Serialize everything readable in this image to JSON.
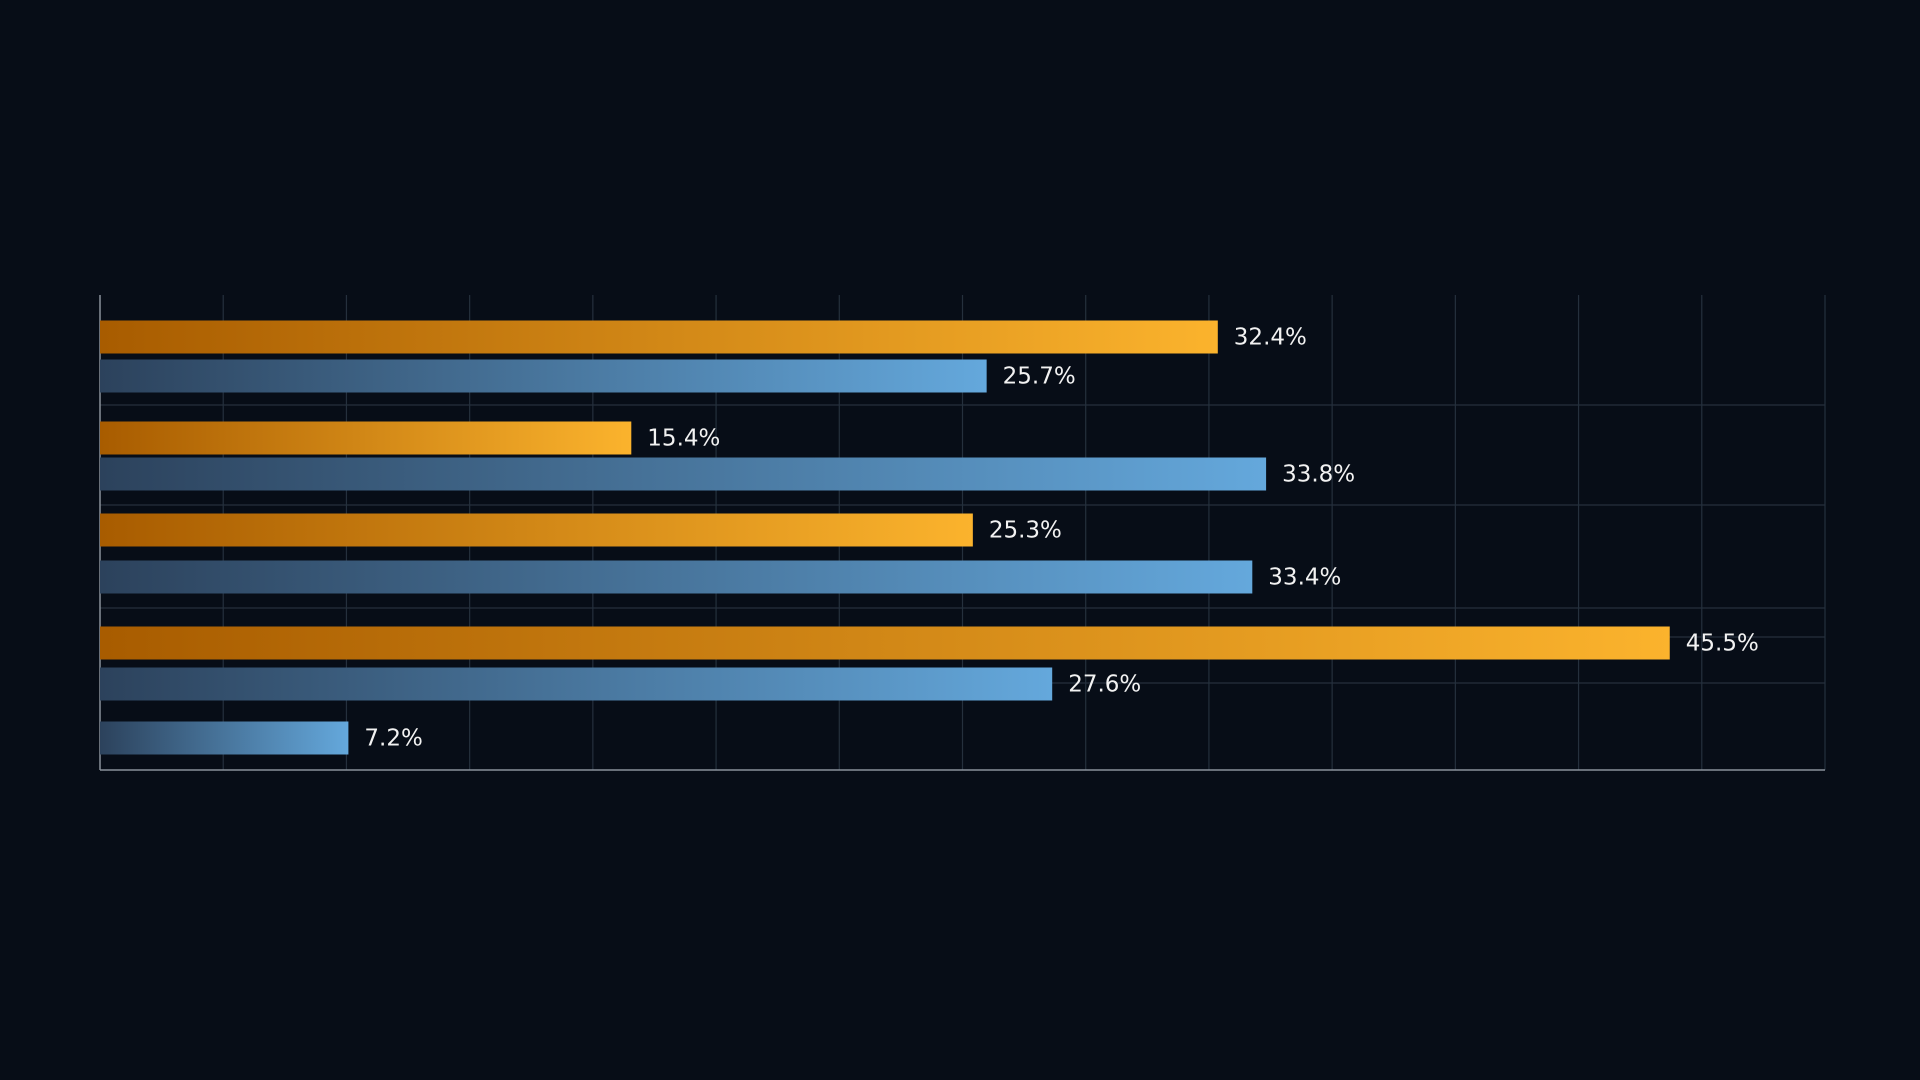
{
  "chart_data": {
    "type": "bar",
    "orientation": "horizontal",
    "categories": [
      null,
      null,
      null,
      null,
      null
    ],
    "xlim": [
      0,
      50
    ],
    "grid": true,
    "series": [
      {
        "color": "#fbb32d",
        "values": [
          32.4,
          15.4,
          25.3,
          45.5,
          null
        ],
        "value_labels": [
          "32.4%",
          "15.4%",
          "25.3%",
          "45.5%",
          null
        ]
      },
      {
        "color": "#64a8dc",
        "values": [
          25.7,
          33.8,
          33.4,
          27.6,
          7.2
        ],
        "value_labels": [
          "25.7%",
          "33.8%",
          "33.4%",
          "27.6%",
          "7.2%"
        ]
      }
    ]
  }
}
